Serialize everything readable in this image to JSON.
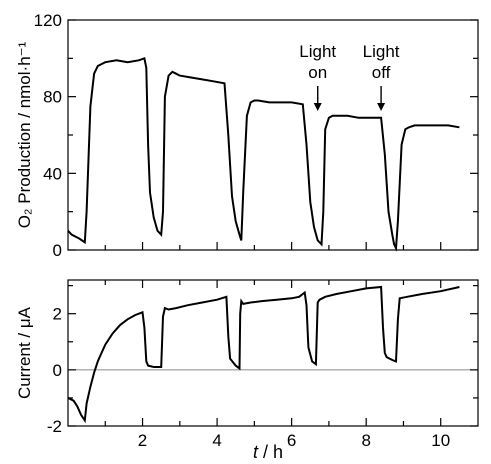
{
  "chart_data": [
    {
      "type": "line",
      "ylabel": "O₂ Production / nmol·h⁻¹",
      "xlim": [
        0,
        11
      ],
      "ylim": [
        0,
        120
      ],
      "yticks": [
        0,
        40,
        80,
        120
      ],
      "series": [
        {
          "x": [
            0.0,
            0.1,
            0.2,
            0.3,
            0.45,
            0.5,
            0.6,
            0.7,
            0.8,
            0.9,
            1.0,
            1.3,
            1.6,
            1.9,
            2.05,
            2.1,
            2.15,
            2.2,
            2.3,
            2.4,
            2.5,
            2.55,
            2.6,
            2.7,
            2.8,
            2.9,
            3.0,
            3.3,
            3.6,
            3.9,
            4.2,
            4.3,
            4.4,
            4.5,
            4.6,
            4.65,
            4.7,
            4.8,
            4.9,
            5.0,
            5.1,
            5.4,
            5.7,
            6.0,
            6.3,
            6.4,
            6.5,
            6.6,
            6.7,
            6.8,
            6.85,
            6.9,
            7.0,
            7.1,
            7.2,
            7.5,
            7.8,
            8.1,
            8.4,
            8.5,
            8.6,
            8.7,
            8.75,
            8.8,
            8.85,
            8.95,
            9.05,
            9.15,
            9.3,
            9.6,
            9.9,
            10.2,
            10.5
          ],
          "y": [
            10,
            8,
            7,
            6,
            4,
            20,
            75,
            92,
            96,
            97,
            98,
            99,
            98,
            99,
            100,
            95,
            55,
            30,
            17,
            10,
            8,
            20,
            80,
            91,
            93,
            92,
            91,
            90,
            89,
            88,
            87,
            60,
            28,
            15,
            8,
            5,
            30,
            70,
            77,
            78,
            78,
            77,
            77,
            77,
            76,
            55,
            25,
            12,
            5,
            3,
            20,
            63,
            69,
            70,
            70,
            70,
            69,
            69,
            69,
            50,
            20,
            8,
            3,
            1,
            15,
            55,
            63,
            64,
            65,
            65,
            65,
            65,
            64
          ]
        }
      ],
      "annotations": [
        {
          "text_top": "Light",
          "text_bottom": "on",
          "x": 6.7
        },
        {
          "text_top": "Light",
          "text_bottom": "off",
          "x": 8.4
        }
      ]
    },
    {
      "type": "line",
      "xlabel_italic": "t",
      "xlabel_rest": " / h",
      "ylabel": "Current / μA",
      "xlim": [
        0,
        11
      ],
      "ylim": [
        -2,
        3.2
      ],
      "yticks": [
        -2,
        0,
        2
      ],
      "xticks": [
        2,
        4,
        6,
        8,
        10
      ],
      "zero_line": true,
      "series": [
        {
          "x": [
            0.0,
            0.15,
            0.25,
            0.35,
            0.45,
            0.5,
            0.6,
            0.7,
            0.8,
            0.9,
            1.0,
            1.2,
            1.4,
            1.6,
            1.8,
            2.0,
            2.05,
            2.1,
            2.15,
            2.3,
            2.5,
            2.55,
            2.6,
            2.7,
            2.9,
            3.2,
            3.6,
            4.0,
            4.25,
            4.3,
            4.35,
            4.5,
            4.6,
            4.62,
            4.65,
            4.7,
            4.9,
            5.2,
            5.6,
            6.0,
            6.2,
            6.35,
            6.4,
            6.45,
            6.55,
            6.65,
            6.7,
            6.75,
            6.9,
            7.2,
            7.6,
            8.0,
            8.4,
            8.45,
            8.5,
            8.55,
            8.7,
            8.8,
            8.85,
            8.9,
            9.1,
            9.5,
            10.0,
            10.5
          ],
          "y": [
            -1.0,
            -1.1,
            -1.3,
            -1.6,
            -1.8,
            -1.2,
            -0.6,
            -0.1,
            0.3,
            0.6,
            0.9,
            1.3,
            1.6,
            1.8,
            1.95,
            2.05,
            1.5,
            0.3,
            0.15,
            0.1,
            0.1,
            1.9,
            2.2,
            2.15,
            2.2,
            2.3,
            2.4,
            2.5,
            2.6,
            1.2,
            0.4,
            0.15,
            0.05,
            2.0,
            2.45,
            2.35,
            2.4,
            2.45,
            2.5,
            2.55,
            2.6,
            2.75,
            2.3,
            0.8,
            0.3,
            0.2,
            2.4,
            2.5,
            2.6,
            2.7,
            2.8,
            2.9,
            2.95,
            1.5,
            0.6,
            0.45,
            0.35,
            0.3,
            1.8,
            2.55,
            2.6,
            2.7,
            2.8,
            2.95
          ]
        }
      ]
    }
  ]
}
